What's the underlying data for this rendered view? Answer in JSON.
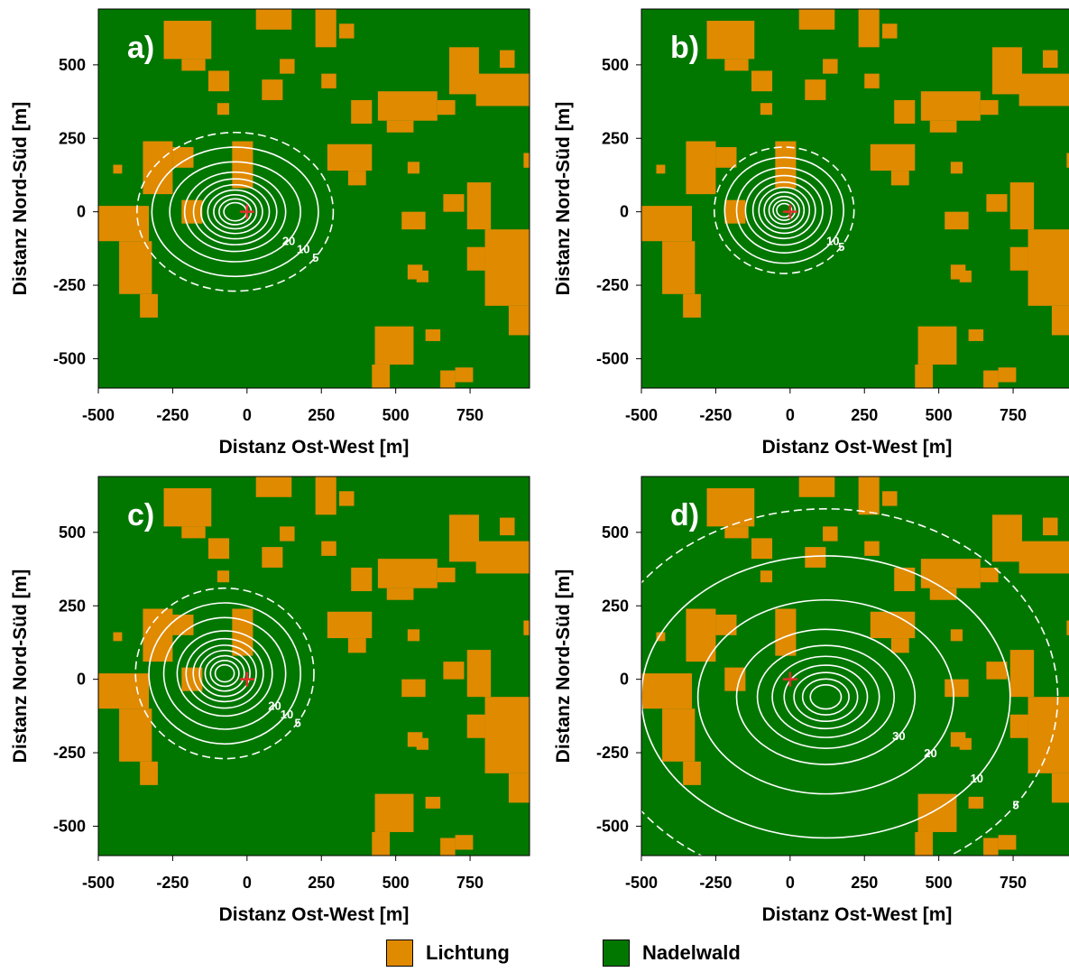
{
  "chart_data": [
    {
      "type": "heatmap",
      "panel": "a)",
      "xlabel": "Distanz Ost-West [m]",
      "ylabel": "Distanz Nord-Süd [m]",
      "xlim": [
        -500,
        950
      ],
      "ylim": [
        -600,
        690
      ],
      "xticks": [
        -500,
        -250,
        0,
        250,
        500,
        750
      ],
      "yticks": [
        -500,
        -250,
        0,
        250,
        500
      ],
      "source_marker": {
        "x": 0,
        "y": 0
      },
      "contour_center": {
        "x": -40,
        "y": 0
      },
      "contours": [
        {
          "level": 5,
          "radius_x": 330,
          "radius_y": 270,
          "dashed": true,
          "label": "5"
        },
        {
          "level": 10,
          "radius_x": 280,
          "radius_y": 220,
          "label": "10"
        },
        {
          "level": 20,
          "radius_x": 220,
          "radius_y": 170,
          "label": "20"
        },
        {
          "level": 30,
          "radius_x": 170,
          "radius_y": 135
        },
        {
          "level": 40,
          "radius_x": 140,
          "radius_y": 112
        },
        {
          "level": 50,
          "radius_x": 115,
          "radius_y": 92
        },
        {
          "level": 60,
          "radius_x": 92,
          "radius_y": 74
        },
        {
          "level": 70,
          "radius_x": 72,
          "radius_y": 58
        },
        {
          "level": 80,
          "radius_x": 54,
          "radius_y": 44
        },
        {
          "level": 90,
          "radius_x": 38,
          "radius_y": 31
        }
      ]
    },
    {
      "type": "heatmap",
      "panel": "b)",
      "xlabel": "Distanz Ost-West [m]",
      "ylabel": "Distanz Nord-Süd [m]",
      "xlim": [
        -500,
        950
      ],
      "ylim": [
        -600,
        690
      ],
      "xticks": [
        -500,
        -250,
        0,
        250,
        500,
        750
      ],
      "yticks": [
        -500,
        -250,
        0,
        250,
        500
      ],
      "source_marker": {
        "x": 0,
        "y": 0
      },
      "contour_center": {
        "x": -20,
        "y": 5
      },
      "contours": [
        {
          "level": 5,
          "radius_x": 235,
          "radius_y": 215,
          "dashed": true,
          "label": "5"
        },
        {
          "level": 10,
          "radius_x": 200,
          "radius_y": 180,
          "label": "10"
        },
        {
          "level": 20,
          "radius_x": 160,
          "radius_y": 145
        },
        {
          "level": 30,
          "radius_x": 130,
          "radius_y": 118
        },
        {
          "level": 40,
          "radius_x": 105,
          "radius_y": 96
        },
        {
          "level": 50,
          "radius_x": 85,
          "radius_y": 78
        },
        {
          "level": 60,
          "radius_x": 67,
          "radius_y": 62
        },
        {
          "level": 70,
          "radius_x": 51,
          "radius_y": 47
        },
        {
          "level": 80,
          "radius_x": 37,
          "radius_y": 34
        },
        {
          "level": 90,
          "radius_x": 25,
          "radius_y": 23
        }
      ]
    },
    {
      "type": "heatmap",
      "panel": "c)",
      "xlabel": "Distanz Ost-West [m]",
      "ylabel": "Distanz Nord-Süd [m]",
      "xlim": [
        -500,
        950
      ],
      "ylim": [
        -600,
        690
      ],
      "xticks": [
        -500,
        -250,
        0,
        250,
        500,
        750
      ],
      "yticks": [
        -500,
        -250,
        0,
        250,
        500
      ],
      "source_marker": {
        "x": 0,
        "y": 0
      },
      "contour_center": {
        "x": -75,
        "y": 20
      },
      "contours": [
        {
          "level": 5,
          "radius_x": 300,
          "radius_y": 290,
          "dashed": true,
          "label": "5"
        },
        {
          "level": 10,
          "radius_x": 255,
          "radius_y": 240,
          "label": "10"
        },
        {
          "level": 20,
          "radius_x": 205,
          "radius_y": 190,
          "label": "20"
        },
        {
          "level": 30,
          "radius_x": 160,
          "radius_y": 145
        },
        {
          "level": 40,
          "radius_x": 130,
          "radius_y": 118
        },
        {
          "level": 50,
          "radius_x": 106,
          "radius_y": 96
        },
        {
          "level": 60,
          "radius_x": 85,
          "radius_y": 78
        },
        {
          "level": 70,
          "radius_x": 66,
          "radius_y": 60
        },
        {
          "level": 80,
          "radius_x": 48,
          "radius_y": 44
        },
        {
          "level": 90,
          "radius_x": 32,
          "radius_y": 29
        }
      ]
    },
    {
      "type": "heatmap",
      "panel": "d)",
      "xlabel": "Distanz Ost-West [m]",
      "ylabel": "Distanz Nord-Süd [m]",
      "xlim": [
        -500,
        950
      ],
      "ylim": [
        -600,
        690
      ],
      "xticks": [
        -500,
        -250,
        0,
        250,
        500,
        750
      ],
      "yticks": [
        -500,
        -250,
        0,
        250,
        500
      ],
      "source_marker": {
        "x": 0,
        "y": 0
      },
      "contour_center": {
        "x": 120,
        "y": -60
      },
      "contours": [
        {
          "level": 5,
          "radius_x": 780,
          "radius_y": 640,
          "dashed": true,
          "label": "5"
        },
        {
          "level": 10,
          "radius_x": 620,
          "radius_y": 480,
          "label": "10"
        },
        {
          "level": 20,
          "radius_x": 430,
          "radius_y": 330,
          "label": "20"
        },
        {
          "level": 30,
          "radius_x": 300,
          "radius_y": 230,
          "label": "30"
        },
        {
          "level": 40,
          "radius_x": 230,
          "radius_y": 175
        },
        {
          "level": 50,
          "radius_x": 180,
          "radius_y": 138
        },
        {
          "level": 60,
          "radius_x": 140,
          "radius_y": 108
        },
        {
          "level": 70,
          "radius_x": 107,
          "radius_y": 83
        },
        {
          "level": 80,
          "radius_x": 78,
          "radius_y": 61
        },
        {
          "level": 90,
          "radius_x": 52,
          "radius_y": 41
        }
      ]
    }
  ],
  "map": {
    "clearing_color": "#E08A00",
    "forest_color": "#027700",
    "source_marker_color": "#E0302A",
    "contour_color": "#FFFFFF",
    "clearings": [
      {
        "x0": -350,
        "x1": -250,
        "y0": 60,
        "y1": 240
      },
      {
        "x0": -250,
        "x1": -180,
        "y0": 150,
        "y1": 220
      },
      {
        "x0": -500,
        "x1": -330,
        "y0": -100,
        "y1": 20
      },
      {
        "x0": -430,
        "x1": -320,
        "y0": -280,
        "y1": -100
      },
      {
        "x0": -360,
        "x1": -300,
        "y0": -360,
        "y1": -280
      },
      {
        "x0": -220,
        "x1": -150,
        "y0": -40,
        "y1": 40
      },
      {
        "x0": -50,
        "x1": 20,
        "y0": 80,
        "y1": 240
      },
      {
        "x0": -130,
        "x1": -60,
        "y0": 410,
        "y1": 480
      },
      {
        "x0": 50,
        "x1": 120,
        "y0": 380,
        "y1": 450
      },
      {
        "x0": 110,
        "x1": 160,
        "y0": 470,
        "y1": 520
      },
      {
        "x0": 30,
        "x1": 150,
        "y0": 620,
        "y1": 690
      },
      {
        "x0": -280,
        "x1": -120,
        "y0": 520,
        "y1": 650
      },
      {
        "x0": -220,
        "x1": -140,
        "y0": 480,
        "y1": 520
      },
      {
        "x0": 230,
        "x1": 300,
        "y0": 560,
        "y1": 690
      },
      {
        "x0": 250,
        "x1": 300,
        "y0": 420,
        "y1": 470
      },
      {
        "x0": 310,
        "x1": 360,
        "y0": 590,
        "y1": 640
      },
      {
        "x0": 350,
        "x1": 420,
        "y0": 300,
        "y1": 380
      },
      {
        "x0": 270,
        "x1": 420,
        "y0": 140,
        "y1": 230
      },
      {
        "x0": 340,
        "x1": 400,
        "y0": 90,
        "y1": 140
      },
      {
        "x0": 440,
        "x1": 640,
        "y0": 310,
        "y1": 410
      },
      {
        "x0": 470,
        "x1": 560,
        "y0": 270,
        "y1": 310
      },
      {
        "x0": 640,
        "x1": 700,
        "y0": 330,
        "y1": 380
      },
      {
        "x0": 680,
        "x1": 780,
        "y0": 400,
        "y1": 560
      },
      {
        "x0": 770,
        "x1": 950,
        "y0": 360,
        "y1": 470
      },
      {
        "x0": 850,
        "x1": 900,
        "y0": 490,
        "y1": 550
      },
      {
        "x0": 930,
        "x1": 950,
        "y0": 150,
        "y1": 200
      },
      {
        "x0": 740,
        "x1": 820,
        "y0": -60,
        "y1": 100
      },
      {
        "x0": 660,
        "x1": 730,
        "y0": 0,
        "y1": 60
      },
      {
        "x0": 800,
        "x1": 950,
        "y0": -320,
        "y1": -60
      },
      {
        "x0": 740,
        "x1": 800,
        "y0": -200,
        "y1": -120
      },
      {
        "x0": 880,
        "x1": 950,
        "y0": -420,
        "y1": -320
      },
      {
        "x0": 520,
        "x1": 600,
        "y0": -60,
        "y1": 0
      },
      {
        "x0": 540,
        "x1": 590,
        "y0": -230,
        "y1": -180
      },
      {
        "x0": 430,
        "x1": 560,
        "y0": -520,
        "y1": -390
      },
      {
        "x0": 420,
        "x1": 480,
        "y0": -600,
        "y1": -520
      },
      {
        "x0": 600,
        "x1": 650,
        "y0": -440,
        "y1": -400
      },
      {
        "x0": 650,
        "x1": 700,
        "y0": -600,
        "y1": -540
      },
      {
        "x0": 700,
        "x1": 760,
        "y0": -580,
        "y1": -530
      },
      {
        "x0": 570,
        "x1": 610,
        "y0": -240,
        "y1": -200
      },
      {
        "x0": -100,
        "x1": -60,
        "y0": 330,
        "y1": 370
      },
      {
        "x0": -450,
        "x1": -420,
        "y0": 130,
        "y1": 160
      },
      {
        "x0": 540,
        "x1": 580,
        "y0": 130,
        "y1": 170
      }
    ]
  },
  "legend": {
    "items": [
      {
        "label": "Lichtung",
        "color": "#E08A00"
      },
      {
        "label": "Nadelwald",
        "color": "#027700"
      }
    ]
  }
}
